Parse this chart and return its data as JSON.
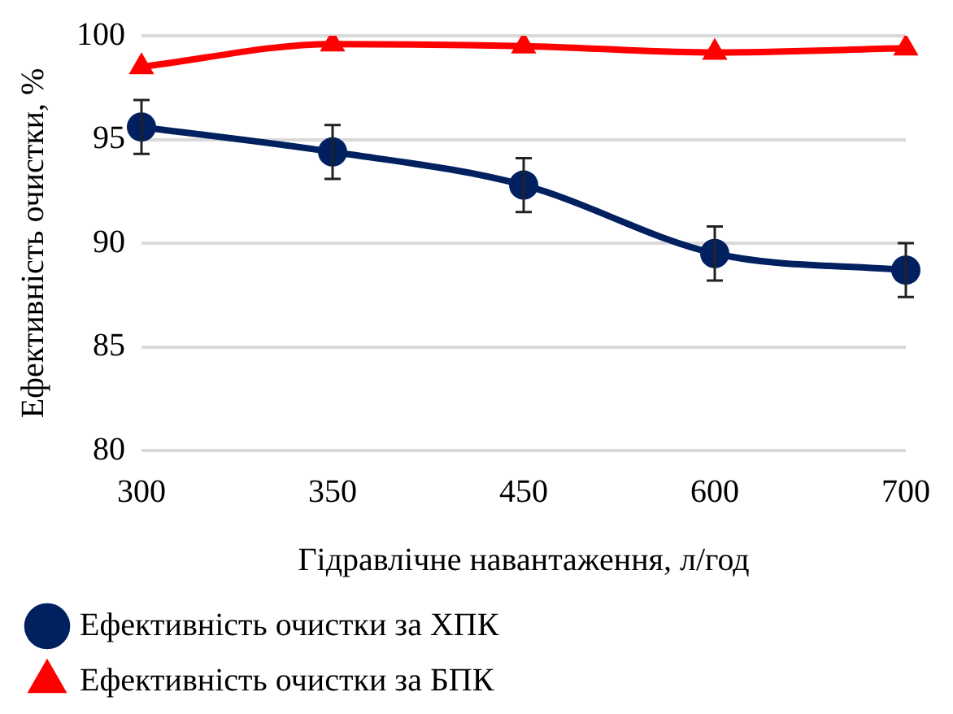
{
  "chart_data": {
    "type": "line",
    "xlabel": "Гідравлічне навантаження, л/год",
    "ylabel": "Ефективність очистки, %",
    "categories": [
      "300",
      "350",
      "450",
      "600",
      "700"
    ],
    "series": [
      {
        "name": "Ефективність очистки за ХПК",
        "color": "#002060",
        "marker": "circle",
        "values": [
          95.6,
          94.4,
          92.8,
          89.5,
          88.7
        ],
        "errors": [
          1.3,
          1.3,
          1.3,
          1.3,
          1.3
        ]
      },
      {
        "name": "Ефективність очистки за БПК",
        "color": "#ff0000",
        "marker": "triangle",
        "values": [
          98.5,
          99.6,
          99.5,
          99.2,
          99.4
        ]
      }
    ],
    "ylim": [
      80,
      100
    ],
    "yticks": [
      80,
      85,
      90,
      95,
      100
    ],
    "grid": "y",
    "legend": "bottom",
    "line_style": "solid"
  }
}
